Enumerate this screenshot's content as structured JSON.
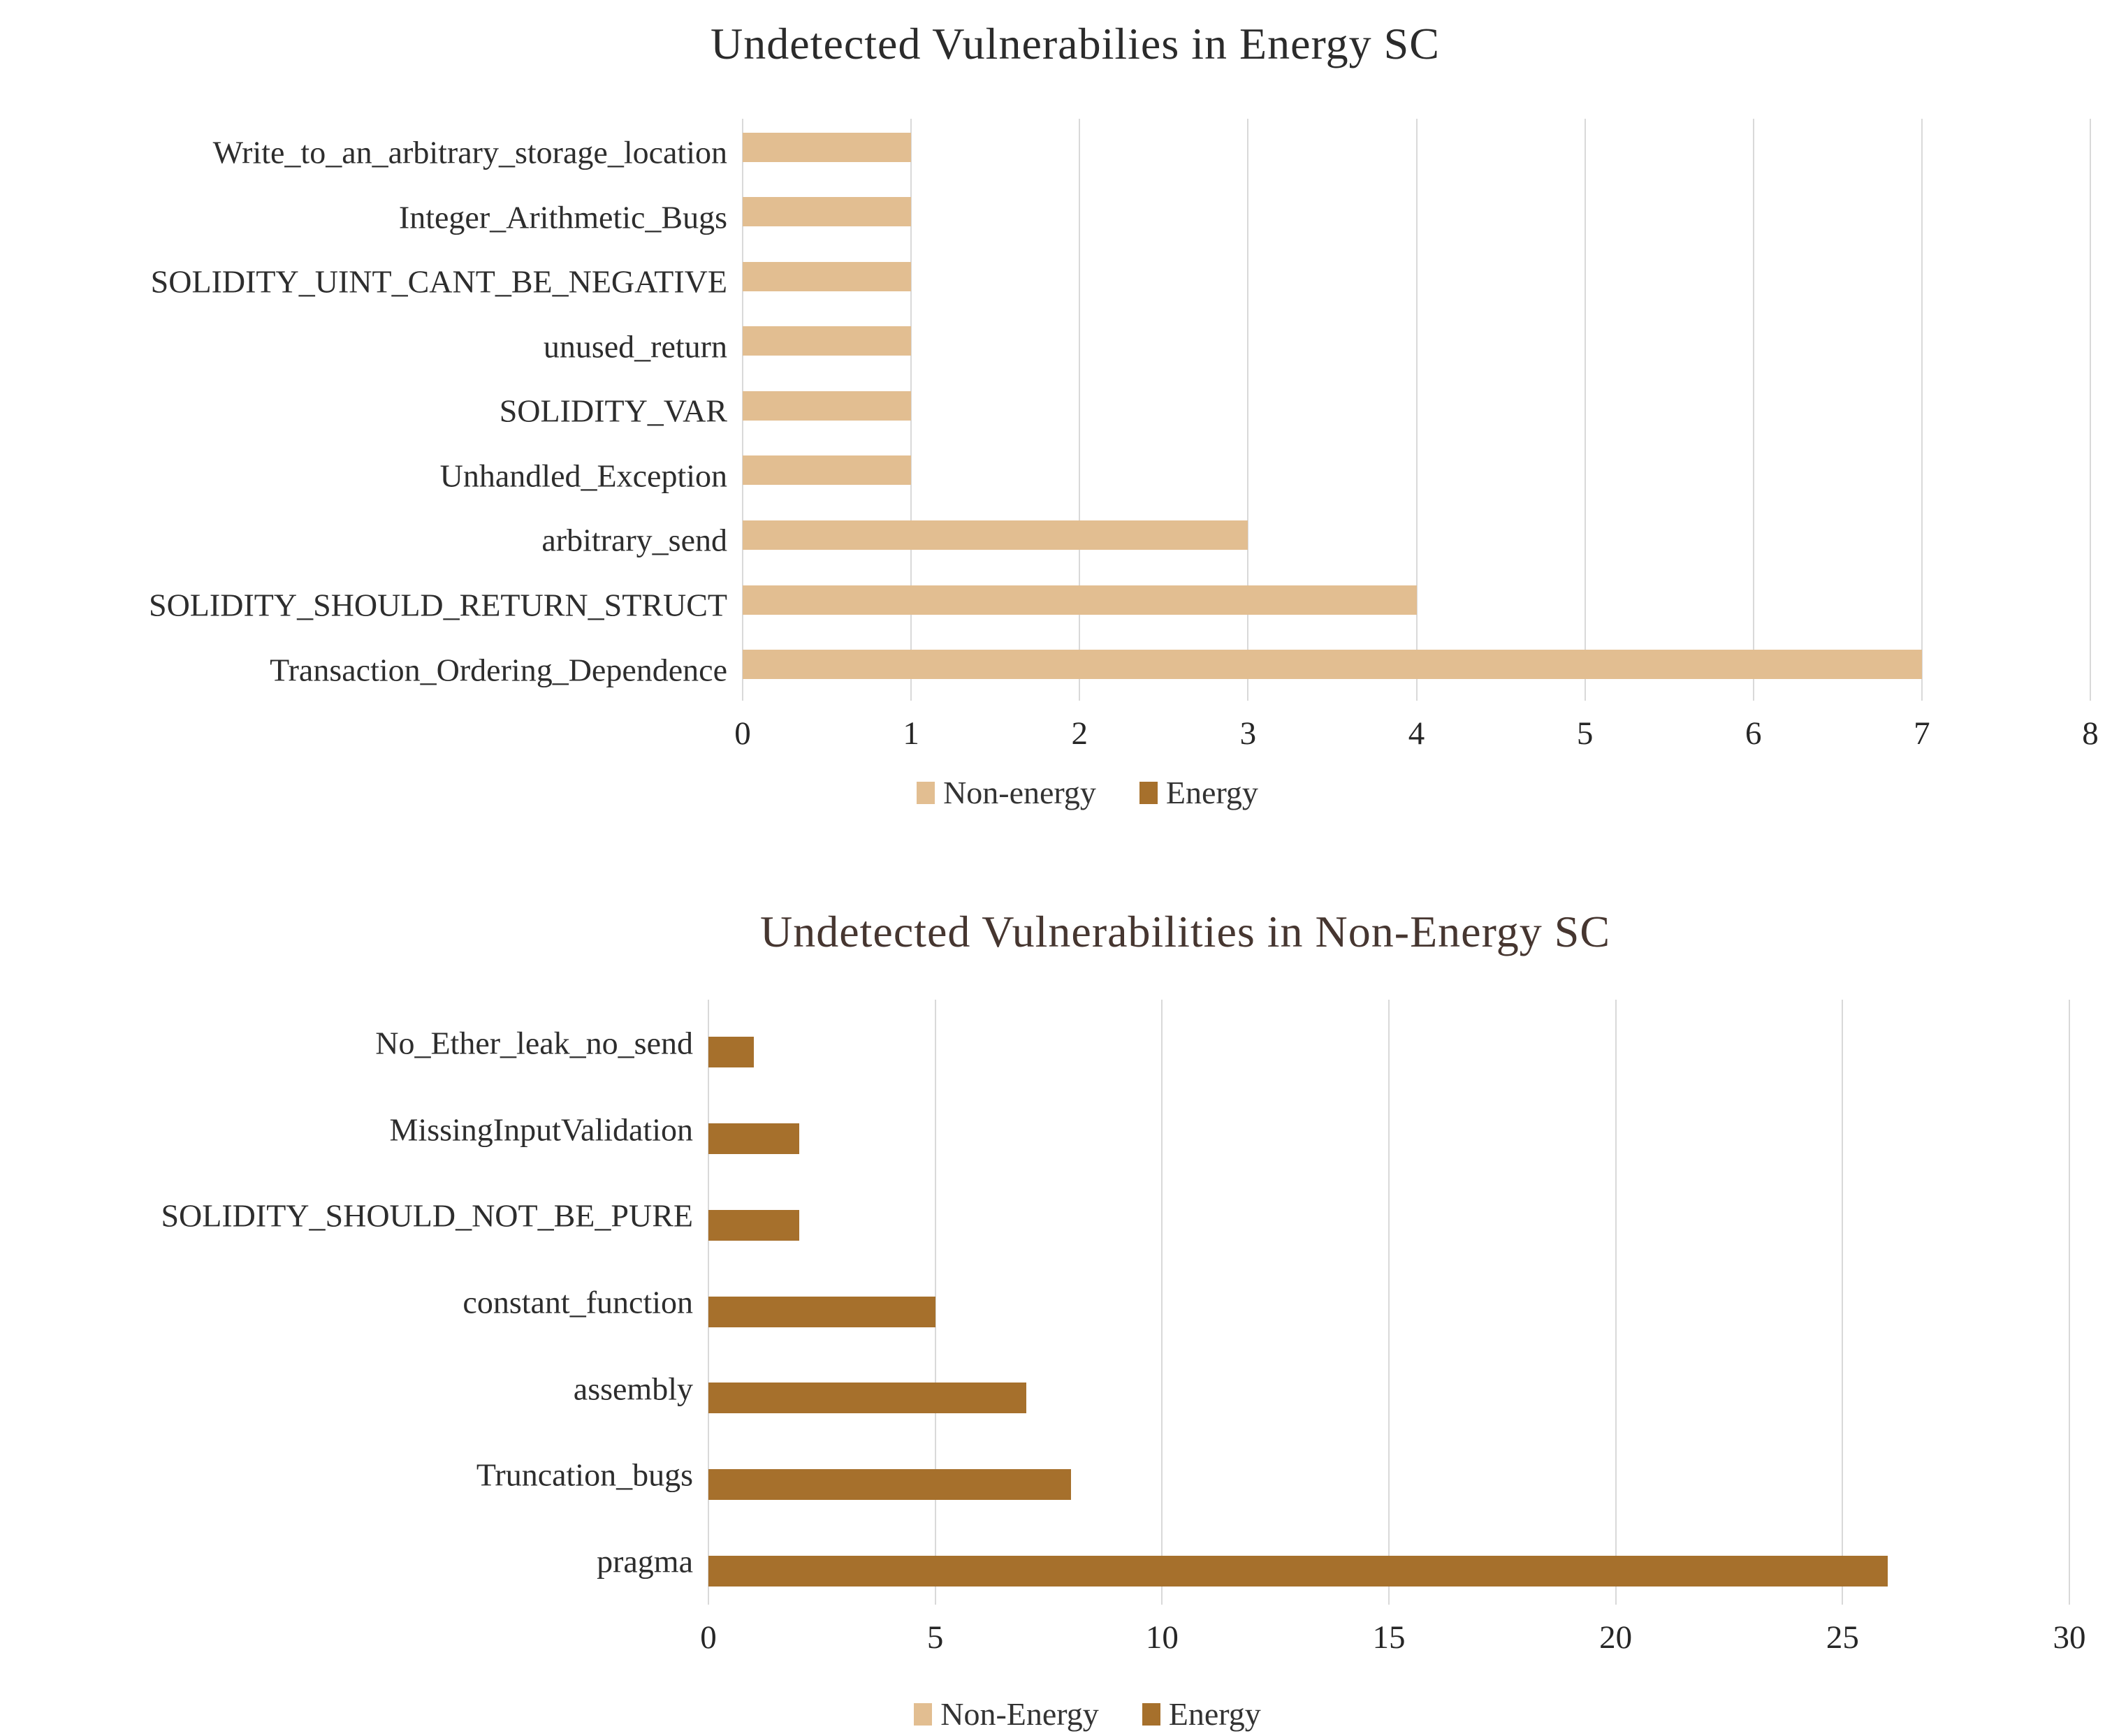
{
  "page": {
    "background": "#ffffff",
    "gridline_color": "#d9d9d9"
  },
  "chart_data": [
    {
      "type": "bar",
      "orientation": "horizontal",
      "title": "Undetected Vulnerabilies in Energy SC",
      "title_color": "#2b2b2b",
      "categories": [
        "Write_to_an_arbitrary_storage_location",
        "Integer_Arithmetic_Bugs",
        "SOLIDITY_UINT_CANT_BE_NEGATIVE",
        "unused_return",
        "SOLIDITY_VAR",
        "Unhandled_Exception",
        "arbitrary_send",
        "SOLIDITY_SHOULD_RETURN_STRUCT",
        "Transaction_Ordering_Dependence"
      ],
      "series": [
        {
          "name": "Non-energy",
          "color": "#e2be91",
          "values": [
            1,
            1,
            1,
            1,
            1,
            1,
            3,
            4,
            7
          ]
        }
      ],
      "xlim": [
        0,
        8
      ],
      "xticks": [
        0,
        1,
        2,
        3,
        4,
        5,
        6,
        7,
        8
      ],
      "grid": true,
      "legend_position": "bottom",
      "legend": [
        {
          "label": "Non-energy",
          "color": "#e2be91"
        },
        {
          "label": "Energy",
          "color": "#a6702c"
        }
      ]
    },
    {
      "type": "bar",
      "orientation": "horizontal",
      "title": "Undetected Vulnerabilities in Non-Energy SC",
      "title_color": "#463630",
      "categories": [
        "No_Ether_leak_no_send",
        "MissingInputValidation",
        "SOLIDITY_SHOULD_NOT_BE_PURE",
        "constant_function",
        "assembly",
        "Truncation_bugs",
        "pragma"
      ],
      "series": [
        {
          "name": "Energy",
          "color": "#a6702c",
          "values": [
            1,
            2,
            2,
            5,
            7,
            8,
            26
          ]
        }
      ],
      "xlim": [
        0,
        30
      ],
      "xticks": [
        0,
        5,
        10,
        15,
        20,
        25,
        30
      ],
      "grid": true,
      "legend_position": "bottom",
      "legend": [
        {
          "label": "Non-Energy",
          "color": "#e2be91"
        },
        {
          "label": "Energy",
          "color": "#a6702c"
        }
      ]
    }
  ]
}
